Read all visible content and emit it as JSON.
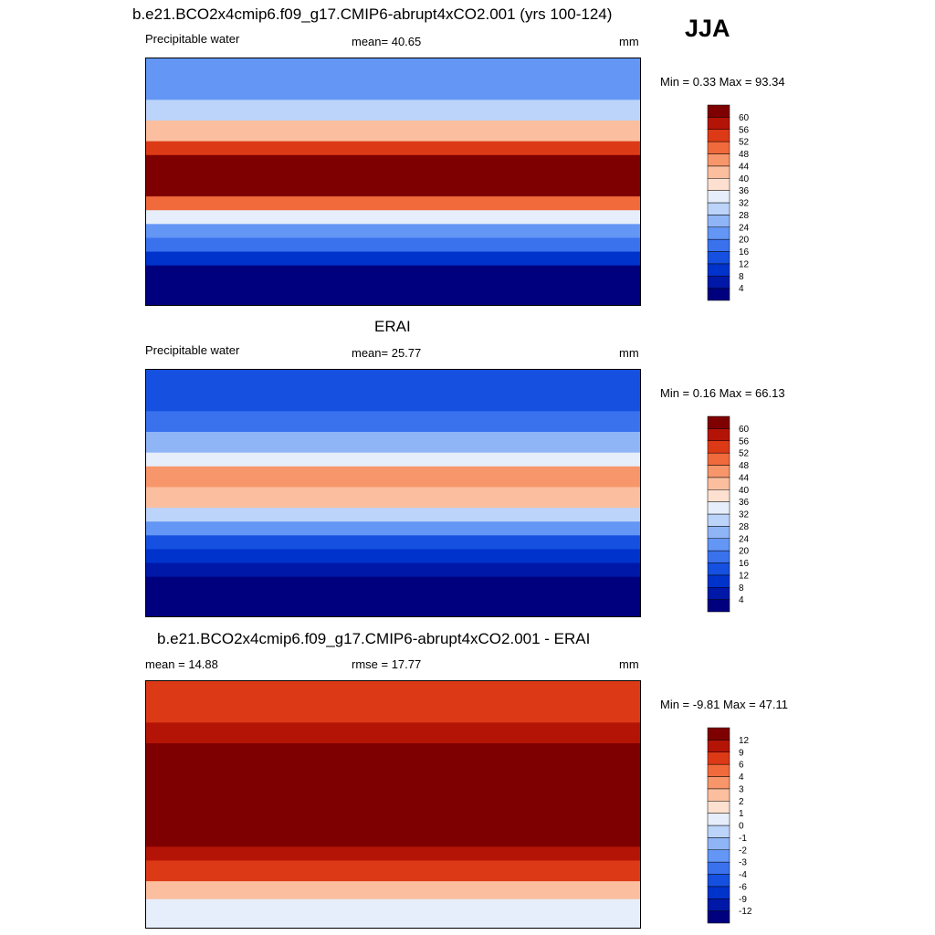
{
  "header": {
    "title": "b.e21.BCO2x4cmip6.f09_g17.CMIP6-abrupt4xCO2.001 (yrs 100-124)",
    "season": "JJA"
  },
  "panels": [
    {
      "title": "",
      "left_label": "Precipitable water",
      "center_label": "mean=  40.65",
      "units": "mm",
      "minmax": "Min =   0.33 Max =  93.34"
    },
    {
      "title": "ERAI",
      "left_label": "Precipitable water",
      "center_label": "mean=  25.77",
      "units": "mm",
      "minmax": "Min =   0.16 Max =  66.13"
    },
    {
      "title": "b.e21.BCO2x4cmip6.f09_g17.CMIP6-abrupt4xCO2.001 - ERAI",
      "left_label": "mean =  14.88",
      "center_label": "rmse =  17.77",
      "units": "mm",
      "minmax": "Min =  -9.81 Max =  47.11"
    }
  ],
  "chart_data": [
    {
      "type": "heatmap",
      "name": "model",
      "projection": "cylindrical-equidistant",
      "xlim": [
        0,
        360
      ],
      "ylim": [
        -90,
        90
      ],
      "colorbar": {
        "levels": [
          4,
          8,
          12,
          16,
          20,
          24,
          28,
          32,
          36,
          40,
          44,
          48,
          52,
          56,
          60
        ],
        "colors": [
          "#00007f",
          "#0018a8",
          "#0033cc",
          "#1550e0",
          "#3a72ee",
          "#6396f5",
          "#8fb5f7",
          "#bcd4f9",
          "#e6eefb",
          "#fde0cf",
          "#fbbf9f",
          "#f7966b",
          "#f06a3c",
          "#dc3a17",
          "#b41406",
          "#7f0000"
        ]
      },
      "field": {
        "type": "zonal-bands",
        "bands": [
          {
            "lat": [
              60,
              90
            ],
            "value": 20
          },
          {
            "lat": [
              45,
              60
            ],
            "value": 28
          },
          {
            "lat": [
              30,
              45
            ],
            "value": 40
          },
          {
            "lat": [
              20,
              30
            ],
            "value": 52
          },
          {
            "lat": [
              -10,
              20
            ],
            "value": 62
          },
          {
            "lat": [
              -20,
              -10
            ],
            "value": 48
          },
          {
            "lat": [
              -30,
              -20
            ],
            "value": 32
          },
          {
            "lat": [
              -40,
              -30
            ],
            "value": 22
          },
          {
            "lat": [
              -50,
              -40
            ],
            "value": 16
          },
          {
            "lat": [
              -60,
              -50
            ],
            "value": 10
          },
          {
            "lat": [
              -90,
              -60
            ],
            "value": 3
          }
        ]
      }
    },
    {
      "type": "heatmap",
      "name": "ERAI",
      "projection": "cylindrical-equidistant",
      "xlim": [
        0,
        360
      ],
      "ylim": [
        -90,
        90
      ],
      "colorbar": {
        "levels": [
          4,
          8,
          12,
          16,
          20,
          24,
          28,
          32,
          36,
          40,
          44,
          48,
          52,
          56,
          60
        ],
        "colors": [
          "#00007f",
          "#0018a8",
          "#0033cc",
          "#1550e0",
          "#3a72ee",
          "#6396f5",
          "#8fb5f7",
          "#bcd4f9",
          "#e6eefb",
          "#fde0cf",
          "#fbbf9f",
          "#f7966b",
          "#f06a3c",
          "#dc3a17",
          "#b41406",
          "#7f0000"
        ]
      },
      "field": {
        "type": "zonal-bands",
        "bands": [
          {
            "lat": [
              60,
              90
            ],
            "value": 12
          },
          {
            "lat": [
              45,
              60
            ],
            "value": 18
          },
          {
            "lat": [
              30,
              45
            ],
            "value": 24
          },
          {
            "lat": [
              20,
              30
            ],
            "value": 34
          },
          {
            "lat": [
              5,
              20
            ],
            "value": 46
          },
          {
            "lat": [
              -10,
              5
            ],
            "value": 42
          },
          {
            "lat": [
              -20,
              -10
            ],
            "value": 30
          },
          {
            "lat": [
              -30,
              -20
            ],
            "value": 22
          },
          {
            "lat": [
              -40,
              -30
            ],
            "value": 14
          },
          {
            "lat": [
              -50,
              -40
            ],
            "value": 10
          },
          {
            "lat": [
              -60,
              -50
            ],
            "value": 6
          },
          {
            "lat": [
              -90,
              -60
            ],
            "value": 2
          }
        ]
      }
    },
    {
      "type": "heatmap",
      "name": "difference",
      "projection": "cylindrical-equidistant",
      "xlim": [
        0,
        360
      ],
      "ylim": [
        -90,
        90
      ],
      "colorbar": {
        "levels": [
          -12,
          -9,
          -6,
          -4,
          -3,
          -2,
          -1,
          0,
          1,
          2,
          3,
          4,
          6,
          9,
          12
        ],
        "colors": [
          "#00007f",
          "#0018a8",
          "#0033cc",
          "#1550e0",
          "#3a72ee",
          "#6396f5",
          "#8fb5f7",
          "#bcd4f9",
          "#e6eefb",
          "#fde0cf",
          "#fbbf9f",
          "#f7966b",
          "#f06a3c",
          "#dc3a17",
          "#b41406",
          "#7f0000"
        ]
      },
      "field": {
        "type": "zonal-bands",
        "bands": [
          {
            "lat": [
              60,
              90
            ],
            "value": 8
          },
          {
            "lat": [
              45,
              60
            ],
            "value": 11
          },
          {
            "lat": [
              -30,
              45
            ],
            "value": 14
          },
          {
            "lat": [
              -40,
              -30
            ],
            "value": 9
          },
          {
            "lat": [
              -55,
              -40
            ],
            "value": 6
          },
          {
            "lat": [
              -68,
              -55
            ],
            "value": 2.5
          },
          {
            "lat": [
              -90,
              -68
            ],
            "value": 0.5
          }
        ]
      }
    }
  ]
}
